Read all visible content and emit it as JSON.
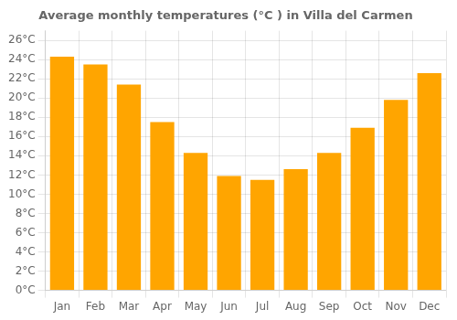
{
  "chart_data": {
    "type": "bar",
    "title": "Average monthly temperatures (°C ) in Villa del Carmen",
    "categories": [
      "Jan",
      "Feb",
      "Mar",
      "Apr",
      "May",
      "Jun",
      "Jul",
      "Aug",
      "Sep",
      "Oct",
      "Nov",
      "Dec"
    ],
    "values": [
      24.3,
      23.5,
      21.4,
      17.5,
      14.3,
      11.9,
      11.5,
      12.6,
      14.3,
      16.9,
      19.8,
      22.6
    ],
    "color": "#FFA500",
    "ylim": [
      0,
      27
    ],
    "yticks": [
      {
        "value": 0,
        "label": "0°C"
      },
      {
        "value": 2,
        "label": "2°C"
      },
      {
        "value": 4,
        "label": "4°C"
      },
      {
        "value": 6,
        "label": "6°C"
      },
      {
        "value": 8,
        "label": "8°C"
      },
      {
        "value": 10,
        "label": "10°C"
      },
      {
        "value": 12,
        "label": "12°C"
      },
      {
        "value": 14,
        "label": "14°C"
      },
      {
        "value": 16,
        "label": "16°C"
      },
      {
        "value": 18,
        "label": "18°C"
      },
      {
        "value": 20,
        "label": "20°C"
      },
      {
        "value": 22,
        "label": "22°C"
      },
      {
        "value": 24,
        "label": "24°C"
      },
      {
        "value": 26,
        "label": "26°C"
      }
    ],
    "grid": true
  }
}
